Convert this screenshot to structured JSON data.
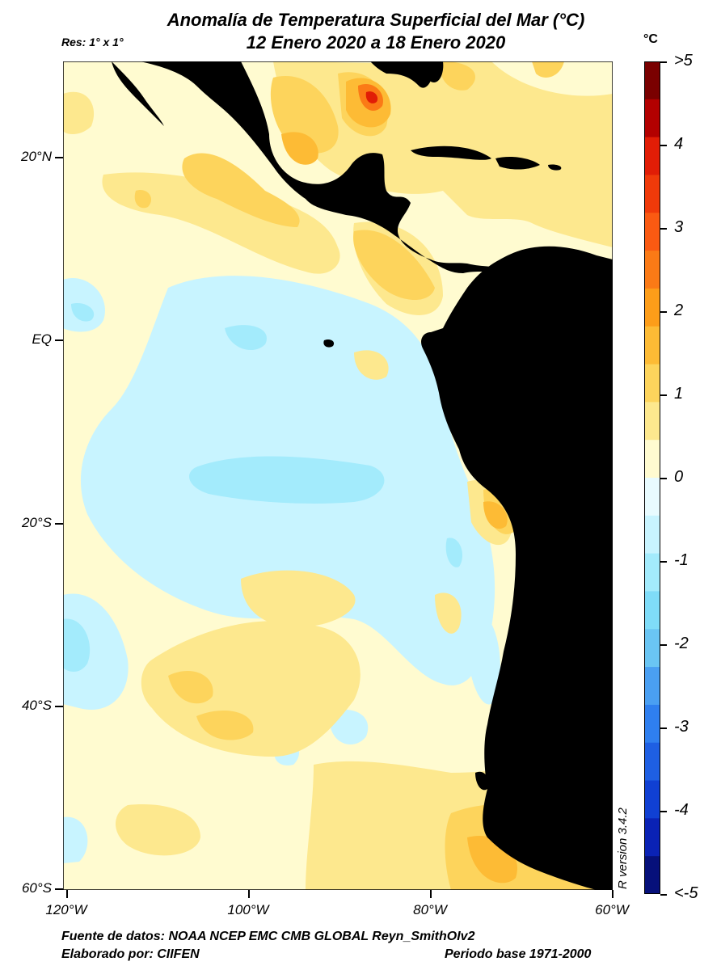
{
  "title": {
    "line1": "Anomalía de Temperatura Superficial del Mar (°C)",
    "line2": "12 Enero 2020 a 18 Enero 2020"
  },
  "resolution": "Res: 1° x 1°",
  "unit": "°C",
  "r_version": "R version 3.4.2",
  "footer": {
    "source": "Fuente de datos: NOAA NCEP EMC CMB GLOBAL Reyn_SmithOIv2",
    "made_by": "Elaborado por: CIIFEN",
    "base_period": "Periodo base 1971-2000"
  },
  "lat_labels": [
    "20°N",
    "EQ",
    "20°S",
    "40°S",
    "60°S"
  ],
  "lon_labels": [
    "120°W",
    "100°W",
    "80°W",
    "60°W"
  ],
  "colorbar": {
    "labels": [
      ">5",
      "4",
      "3",
      "2",
      "1",
      "0",
      "-1",
      "-2",
      "-3",
      "-4",
      "<-5"
    ],
    "colors": [
      "#7a0000",
      "#b30000",
      "#e11d06",
      "#f03a0a",
      "#fa5a12",
      "#fb7a16",
      "#fd9d19",
      "#fdbb35",
      "#fdd45c",
      "#fde88e",
      "#fffbd0",
      "#e8fbff",
      "#c8f4ff",
      "#a3ebfc",
      "#7fdcf8",
      "#6ac5f3",
      "#4a9ff2",
      "#2f7fef",
      "#1e5fe3",
      "#1040d3",
      "#0a22b5",
      "#06107a"
    ]
  },
  "map": {
    "lat_range": [
      -60,
      30
    ],
    "lon_range": [
      -120,
      -60
    ],
    "land_color": "#000000",
    "background_anomaly_color": "#fffbd0"
  }
}
